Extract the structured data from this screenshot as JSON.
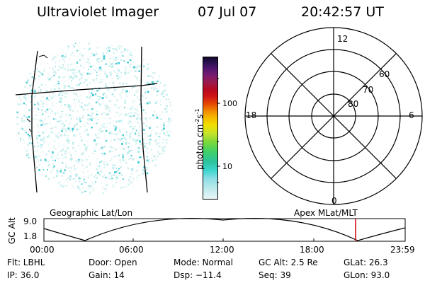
{
  "header": {
    "title": "Ultraviolet Imager",
    "date": "07 Jul 07",
    "time": "20:42:57 UT"
  },
  "colorbar": {
    "label_main": "photon cm",
    "label_sup1": "-2",
    "label_s": "s",
    "label_sup2": "-1",
    "tick_100": "100",
    "tick_10": "10",
    "scale": "log"
  },
  "polar": {
    "labels": {
      "top": "12",
      "left": "18",
      "right": "6",
      "bottom": "0",
      "lat60": "60",
      "lat70": "70",
      "lat80": "80"
    }
  },
  "orbit": {
    "geo_label": "Geographic Lat/Lon",
    "apex_label": "Apex MLat/MLT",
    "y_label": "GC Alt",
    "y_max": "9.0",
    "y_min": "1.8",
    "x_ticks": [
      "00:00",
      "06:00",
      "12:00",
      "18:00",
      "23:59"
    ]
  },
  "info": {
    "flt": "Flt: LBHL",
    "door": "Door: Open",
    "mode": "Mode: Normal",
    "gcalt": "GC Alt: 2.5 Re",
    "glat": "GLat:  26.3",
    "ip": "IP: 36.0",
    "gain": "Gain: 14",
    "dsp": "Dsp:  −11.4",
    "seq": "Seq: 39",
    "glon": "GLon:  93.0"
  },
  "colors": {
    "speckle": "#7fdcdc",
    "speckle_dark": "#2ec4cf",
    "orbit_marker": "#cc0000"
  }
}
